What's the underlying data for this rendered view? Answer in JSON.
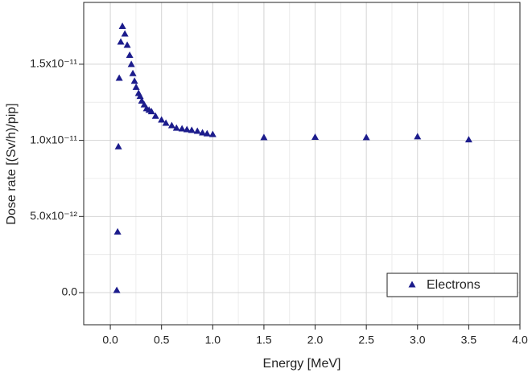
{
  "chart_data": {
    "type": "scatter",
    "x_label": "Energy [MeV]",
    "y_label": "Dose rate [(Sv/h)/pip]",
    "xlim": [
      -0.26,
      4.0
    ],
    "xticks": [
      {
        "value": 0,
        "label": "0.0"
      },
      0.5,
      {
        "value": 1,
        "label": "1.0"
      },
      1.5,
      {
        "value": 2,
        "label": "2.0"
      },
      2.5,
      {
        "value": 3,
        "label": "3.0"
      },
      3.5,
      {
        "value": 4,
        "label": "4.0"
      }
    ],
    "ylim": [
      -2.11e-12,
      1.906e-11
    ],
    "yticks": [
      {
        "value": 0,
        "label": "0.0"
      },
      {
        "value": 5e-12,
        "label": "5.0x10⁻¹²"
      },
      {
        "value": 1e-11,
        "label": "1.0x10⁻¹¹"
      },
      {
        "value": 1.5e-11,
        "label": "1.5x10⁻¹¹"
      }
    ],
    "grid": true,
    "legend": "bottom-right",
    "series": [
      {
        "name": "Electrons",
        "color": "#1c1c8c",
        "x": [
          0.063,
          0.071,
          0.079,
          0.087,
          0.102,
          0.118,
          0.142,
          0.165,
          0.189,
          0.205,
          0.22,
          0.236,
          0.252,
          0.276,
          0.291,
          0.307,
          0.331,
          0.354,
          0.378,
          0.402,
          0.441,
          0.5,
          0.543,
          0.6,
          0.646,
          0.7,
          0.748,
          0.795,
          0.85,
          0.9,
          0.945,
          1.0,
          1.5,
          2.0,
          2.5,
          3.0,
          3.5
        ],
        "values": [
          1.6e-13,
          4e-12,
          9.6e-12,
          1.41e-11,
          1.647e-11,
          1.75e-11,
          1.7e-11,
          1.626e-11,
          1.56e-11,
          1.5e-11,
          1.44e-11,
          1.39e-11,
          1.35e-11,
          1.31e-11,
          1.29e-11,
          1.26e-11,
          1.235e-11,
          1.21e-11,
          1.2e-11,
          1.19e-11,
          1.16e-11,
          1.135e-11,
          1.114e-11,
          1.098e-11,
          1.082e-11,
          1.077e-11,
          1.072e-11,
          1.067e-11,
          1.061e-11,
          1.051e-11,
          1.045e-11,
          1.04e-11,
          1.02e-11,
          1.022e-11,
          1.02e-11,
          1.025e-11,
          1.005e-11
        ]
      }
    ]
  }
}
